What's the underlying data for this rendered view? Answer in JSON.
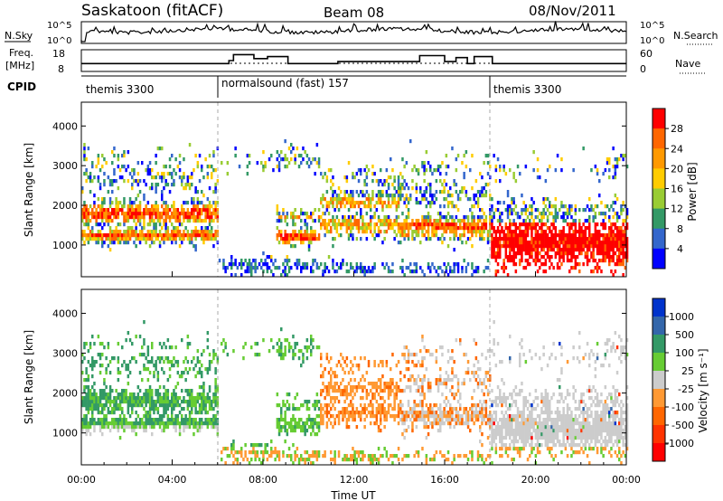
{
  "header": {
    "station": "Saskatoon (fitACF)",
    "beam": "Beam 08",
    "date": "08/Nov/2011"
  },
  "panels": {
    "nsky": {
      "label": "N.Sky",
      "left_ticks": [
        "10^5",
        "10^0"
      ],
      "right_ticks": [
        "10^5",
        "10^0"
      ],
      "right_label": "N.Search"
    },
    "freq": {
      "label_line1": "Freq.",
      "label_line2": "[MHz]",
      "left_ticks": [
        "18",
        "8"
      ],
      "right_ticks": [
        "60",
        "0"
      ],
      "right_label": "Nave"
    },
    "cpid": {
      "label": "CPID",
      "segments": [
        {
          "start": 0,
          "end": 6,
          "text": "themis 3300"
        },
        {
          "start": 6,
          "end": 18,
          "text": "normalsound (fast) 157"
        },
        {
          "start": 18,
          "end": 24,
          "text": "themis 3300"
        }
      ]
    }
  },
  "chart_data": [
    {
      "type": "heatmap",
      "name": "power",
      "ylabel": "Slant Range [km]",
      "yticks": [
        1000,
        2000,
        3000,
        4000
      ],
      "ylim": [
        200,
        4600
      ],
      "xlim": [
        0,
        24
      ],
      "colorbar": {
        "label": "Power [dB]",
        "ticks": [
          "28",
          "24",
          "20",
          "16",
          "12",
          "8",
          "4"
        ],
        "colors": [
          "#ff0000",
          "#ff6600",
          "#ff9900",
          "#ffcc00",
          "#99cc33",
          "#339966",
          "#3366cc",
          "#0000ff"
        ]
      }
    },
    {
      "type": "heatmap",
      "name": "velocity",
      "ylabel": "Slant Range [km]",
      "yticks": [
        1000,
        2000,
        3000,
        4000
      ],
      "ylim": [
        200,
        4600
      ],
      "xlim": [
        0,
        24
      ],
      "xticks": [
        "00:00",
        "04:00",
        "08:00",
        "12:00",
        "16:00",
        "20:00",
        "00:00"
      ],
      "xlabel": "Time UT",
      "colorbar": {
        "label": "Velocity [m s⁻¹]",
        "ticks": [
          "1000",
          "500",
          "100",
          "25",
          "-25",
          "-100",
          "-500",
          "-1000"
        ],
        "colors": [
          "#0033cc",
          "#3366aa",
          "#339966",
          "#66cc33",
          "#cccccc",
          "#ff9933",
          "#ff6600",
          "#ff3300",
          "#ff0000"
        ]
      }
    }
  ]
}
